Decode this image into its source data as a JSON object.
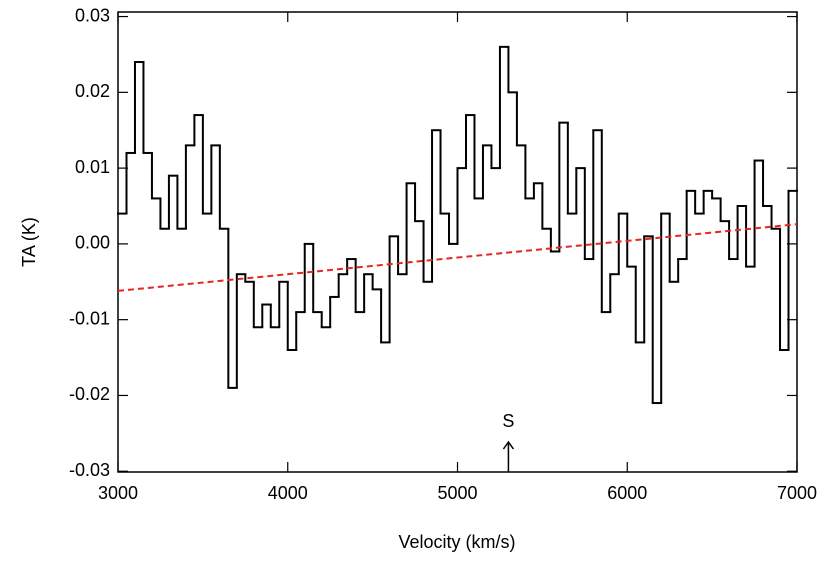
{
  "chart_data": {
    "type": "step",
    "x_label": "Velocity (km/s)",
    "y_label": "TA (K)",
    "x": [
      3025,
      3075,
      3125,
      3175,
      3225,
      3275,
      3325,
      3375,
      3425,
      3475,
      3525,
      3575,
      3625,
      3675,
      3725,
      3775,
      3825,
      3875,
      3925,
      3975,
      4025,
      4075,
      4125,
      4175,
      4225,
      4275,
      4325,
      4375,
      4425,
      4475,
      4525,
      4575,
      4625,
      4675,
      4725,
      4775,
      4825,
      4875,
      4925,
      4975,
      5025,
      5075,
      5125,
      5175,
      5225,
      5275,
      5325,
      5375,
      5425,
      5475,
      5525,
      5575,
      5625,
      5675,
      5725,
      5775,
      5825,
      5875,
      5925,
      5975,
      6025,
      6075,
      6125,
      6175,
      6225,
      6275,
      6325,
      6375,
      6425,
      6475,
      6525,
      6575,
      6625,
      6675,
      6725,
      6775,
      6825,
      6875,
      6925,
      6975
    ],
    "series": [
      {
        "color": "#000000",
        "values": [
          0.004,
          0.012,
          0.024,
          0.012,
          0.006,
          0.002,
          0.009,
          0.002,
          0.013,
          0.017,
          0.004,
          0.013,
          0.002,
          -0.019,
          -0.004,
          -0.005,
          -0.011,
          -0.008,
          -0.011,
          -0.005,
          -0.014,
          -0.009,
          0.0,
          -0.009,
          -0.011,
          -0.007,
          -0.004,
          -0.002,
          -0.009,
          -0.004,
          -0.006,
          -0.013,
          0.001,
          -0.004,
          0.008,
          0.003,
          -0.005,
          0.015,
          0.004,
          0.0,
          0.01,
          0.017,
          0.006,
          0.013,
          0.01,
          0.026,
          0.02,
          0.013,
          0.006,
          0.008,
          0.002,
          -0.001,
          0.016,
          0.004,
          0.01,
          -0.002,
          0.015,
          -0.009,
          -0.004,
          0.004,
          -0.003,
          -0.013,
          0.001,
          -0.021,
          0.004,
          -0.005,
          -0.002,
          0.007,
          0.004,
          0.007,
          0.006,
          0.003,
          -0.002,
          0.005,
          -0.003,
          0.011,
          0.005,
          0.002,
          -0.014,
          0.007
        ]
      },
      {
        "color": "#e8251f",
        "dashed": true,
        "x": [
          3000,
          7000
        ],
        "values": [
          -0.0062,
          0.0026
        ]
      }
    ],
    "annotation": {
      "text": "S",
      "x": 5300
    },
    "xlim": [
      3000,
      7000
    ],
    "xticks": [
      3000,
      4000,
      5000,
      6000,
      7000
    ],
    "ylim": [
      -0.0301,
      0.0306
    ],
    "yticks": [
      -0.03,
      -0.02,
      -0.01,
      {
        "value": 0,
        "label": "0.00"
      },
      0.01,
      0.02,
      0.03
    ]
  }
}
